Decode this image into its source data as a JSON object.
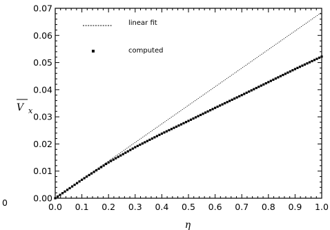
{
  "chart_data": {
    "type": "scatter",
    "xlabel": "η",
    "ylabel": "V",
    "ylabel_subscript": "x",
    "xlim": [
      0.0,
      1.0
    ],
    "ylim": [
      0.0,
      0.07
    ],
    "x_ticks": [
      "0.0",
      "0.1",
      "0.2",
      "0.3",
      "0.4",
      "0.5",
      "0.6",
      "0.7",
      "0.8",
      "0.9",
      "1.0"
    ],
    "y_ticks": [
      "0.00",
      "0.01",
      "0.02",
      "0.03",
      "0.04",
      "0.05",
      "0.06",
      "0.07"
    ],
    "stray_label": "0",
    "grid": false,
    "legend_position": "top-left",
    "series": [
      {
        "name": "linear fit",
        "style": "dotted-line",
        "x": [
          0.0,
          1.0
        ],
        "y": [
          0.0,
          0.0685
        ]
      },
      {
        "name": "computed",
        "style": "square-markers",
        "x": [
          0.0,
          0.1,
          0.2,
          0.3,
          0.4,
          0.5,
          0.6,
          0.7,
          0.8,
          0.9,
          1.0
        ],
        "y": [
          0.0,
          0.0068,
          0.0132,
          0.0188,
          0.0238,
          0.0285,
          0.0333,
          0.038,
          0.0428,
          0.0476,
          0.0522
        ]
      }
    ]
  },
  "colors": {
    "ink": "#000000",
    "background": "#ffffff"
  }
}
